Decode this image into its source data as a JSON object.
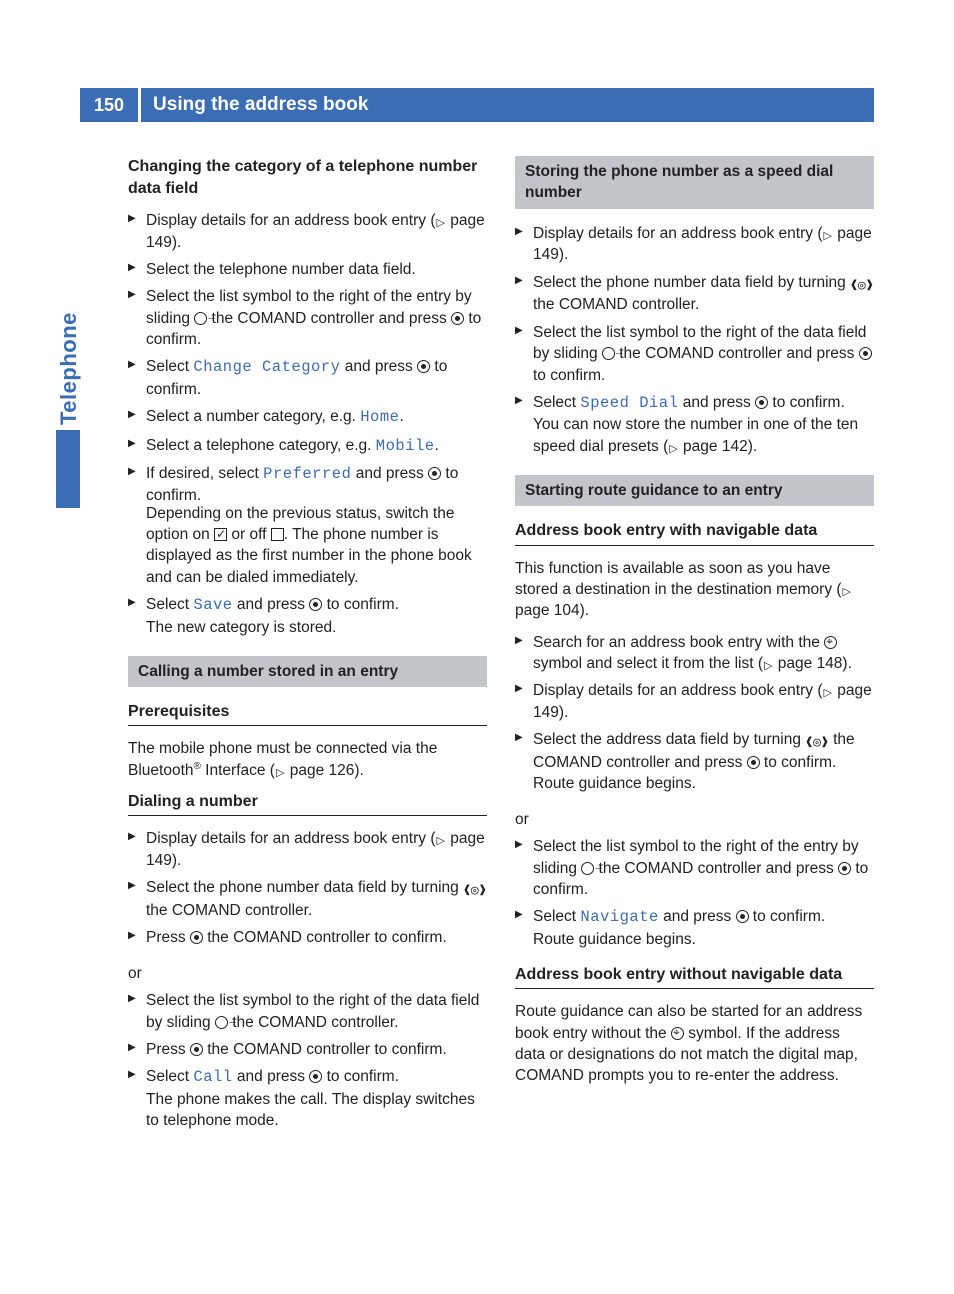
{
  "page_number": "150",
  "page_title": "Using the address book",
  "side_tab": "Telephone",
  "colors": {
    "brand_blue": "#3a6db4",
    "grey_bar": "#c2c6ca",
    "text": "#222222",
    "background": "#ffffff"
  },
  "left": {
    "head1": "Changing the category of a telephone number data field",
    "s1_li1_a": "Display details for an address book entry (",
    "s1_li1_b": " page 149).",
    "s1_li2": "Select the telephone number data field.",
    "s1_li3_a": "Select the list symbol to the right of the entry by sliding ",
    "s1_li3_b": " the COMAND controller and press ",
    "s1_li3_c": " to confirm.",
    "s1_li4_a": "Select ",
    "s1_li4_ui": "Change Category",
    "s1_li4_b": " and press ",
    "s1_li4_c": " to confirm.",
    "s1_li5_a": "Select a number category, e.g. ",
    "s1_li5_ui": "Home",
    "s1_li5_b": ".",
    "s1_li6_a": "Select a telephone category, e.g. ",
    "s1_li6_ui": "Mobile",
    "s1_li6_b": ".",
    "s1_li7_a": "If desired, select ",
    "s1_li7_ui": "Preferred",
    "s1_li7_b": " and press ",
    "s1_li7_c": " to confirm.",
    "s1_li7_follow_a": "Depending on the previous status, switch the option on ",
    "s1_li7_follow_b": " or off ",
    "s1_li7_follow_c": ". The phone number is displayed as the first number in the phone book and can be dialed immediately.",
    "s1_li8_a": "Select ",
    "s1_li8_ui": "Save",
    "s1_li8_b": " and press ",
    "s1_li8_c": " to confirm.",
    "s1_li8_follow": "The new category is stored.",
    "grey1": "Calling a number stored in an entry",
    "prereq_head": "Prerequisites",
    "prereq_a": "The mobile phone must be connected via the Bluetooth",
    "prereq_sup": "®",
    "prereq_b": " Interface (",
    "prereq_c": " page 126).",
    "dial_head": "Dialing a number",
    "d_li1_a": "Display details for an address book entry (",
    "d_li1_b": " page 149).",
    "d_li2_a": "Select the phone number data field by turning ",
    "d_li2_b": " the COMAND controller.",
    "d_li3_a": "Press ",
    "d_li3_b": " the COMAND controller to confirm.",
    "or": "or",
    "d_li4_a": "Select the list symbol to the right of the data field by sliding ",
    "d_li4_b": " the COMAND controller.",
    "d_li5_a": "Press ",
    "d_li5_b": " the COMAND controller to confirm.",
    "d_li6_a": "Select ",
    "d_li6_ui": "Call",
    "d_li6_b": " and press ",
    "d_li6_c": " to confirm.",
    "d_li6_follow": "The phone makes the call. The display switches to telephone mode."
  },
  "right": {
    "grey1": "Storing the phone number as a speed dial number",
    "r1_li1_a": "Display details for an address book entry (",
    "r1_li1_b": " page 149).",
    "r1_li2_a": "Select the phone number data field by turning ",
    "r1_li2_b": " the COMAND controller.",
    "r1_li3_a": "Select the list symbol to the right of the data field by sliding ",
    "r1_li3_b": " the COMAND controller and press ",
    "r1_li3_c": " to confirm.",
    "r1_li4_a": "Select ",
    "r1_li4_ui": "Speed Dial",
    "r1_li4_b": " and press ",
    "r1_li4_c": " to confirm.",
    "r1_li4_follow_a": "You can now store the number in one of the ten speed dial presets (",
    "r1_li4_follow_b": " page 142).",
    "grey2": "Starting route guidance to an entry",
    "nav_head1": "Address book entry with navigable data",
    "nav_p1_a": "This function is available as soon as you have stored a destination in the destination memory (",
    "nav_p1_b": " page 104).",
    "n_li1_a": "Search for an address book entry with the ",
    "n_li1_b": " symbol and select it from the list (",
    "n_li1_c": " page 148).",
    "n_li2_a": "Display details for an address book entry (",
    "n_li2_b": " page 149).",
    "n_li3_a": "Select the address data field by turning ",
    "n_li3_b": " the COMAND controller and press ",
    "n_li3_c": " to confirm.",
    "n_li3_follow": "Route guidance begins.",
    "or": "or",
    "n_li4_a": "Select the list symbol to the right of the entry by sliding ",
    "n_li4_b": " the COMAND controller and press ",
    "n_li4_c": " to confirm.",
    "n_li5_a": "Select ",
    "n_li5_ui": "Navigate",
    "n_li5_b": " and press ",
    "n_li5_c": " to confirm.",
    "n_li5_follow": "Route guidance begins.",
    "nav_head2": "Address book entry without navigable data",
    "nav_p2_a": "Route guidance can also be started for an address book entry without the ",
    "nav_p2_b": " symbol. If the address data or designations do not match the digital map, COMAND prompts you to re-enter the address."
  }
}
